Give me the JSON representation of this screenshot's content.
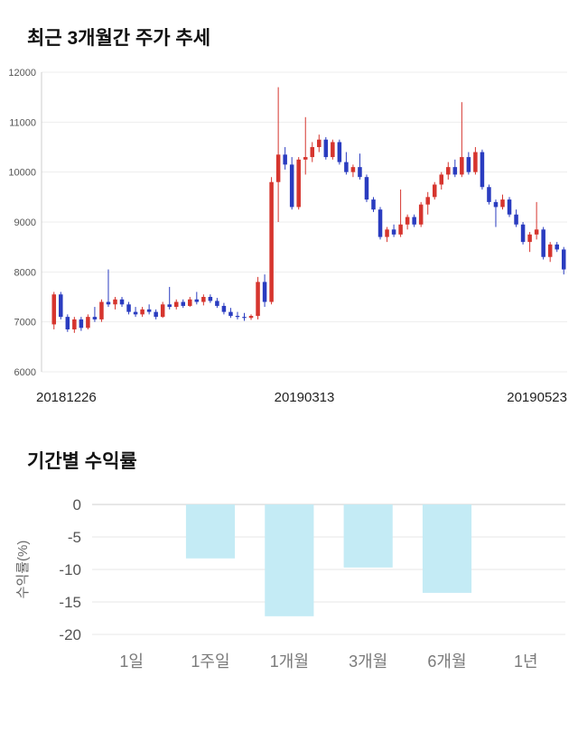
{
  "chart_data": [
    {
      "type": "candlestick",
      "title": "최근 3개월간 주가 추세",
      "ylim": [
        6000,
        12000
      ],
      "yticks": [
        12000,
        11000,
        10000,
        9000,
        8000,
        7000,
        6000
      ],
      "xtick_labels": [
        "20181226",
        "20190313",
        "20190523"
      ],
      "up_color": "#d6352e",
      "down_color": "#2a3cc0",
      "grid": true,
      "candles": [
        [
          6950,
          7600,
          6850,
          7550
        ],
        [
          7550,
          7600,
          7050,
          7100
        ],
        [
          7100,
          7150,
          6800,
          6850
        ],
        [
          6850,
          7100,
          6780,
          7050
        ],
        [
          7050,
          7100,
          6820,
          6880
        ],
        [
          6880,
          7150,
          6850,
          7100
        ],
        [
          7100,
          7300,
          7000,
          7050
        ],
        [
          7050,
          7450,
          7000,
          7400
        ],
        [
          7400,
          8050,
          7300,
          7350
        ],
        [
          7350,
          7500,
          7250,
          7450
        ],
        [
          7450,
          7500,
          7300,
          7350
        ],
        [
          7350,
          7400,
          7150,
          7200
        ],
        [
          7200,
          7300,
          7100,
          7150
        ],
        [
          7150,
          7300,
          7100,
          7250
        ],
        [
          7250,
          7350,
          7150,
          7200
        ],
        [
          7200,
          7250,
          7050,
          7100
        ],
        [
          7100,
          7400,
          7080,
          7350
        ],
        [
          7350,
          7700,
          7250,
          7300
        ],
        [
          7300,
          7450,
          7250,
          7400
        ],
        [
          7400,
          7450,
          7280,
          7320
        ],
        [
          7320,
          7500,
          7300,
          7450
        ],
        [
          7450,
          7600,
          7350,
          7400
        ],
        [
          7400,
          7550,
          7330,
          7500
        ],
        [
          7500,
          7550,
          7380,
          7420
        ],
        [
          7420,
          7480,
          7280,
          7320
        ],
        [
          7320,
          7380,
          7150,
          7200
        ],
        [
          7200,
          7280,
          7080,
          7120
        ],
        [
          7120,
          7200,
          7050,
          7100
        ],
        [
          7100,
          7180,
          7020,
          7080
        ],
        [
          7080,
          7150,
          7040,
          7120
        ],
        [
          7120,
          7900,
          7050,
          7800
        ],
        [
          7800,
          7950,
          7300,
          7400
        ],
        [
          7400,
          9900,
          7350,
          9800
        ],
        [
          9800,
          11700,
          9000,
          10350
        ],
        [
          10350,
          10500,
          10050,
          10150
        ],
        [
          10150,
          10300,
          9250,
          9300
        ],
        [
          9300,
          10300,
          9250,
          10250
        ],
        [
          10250,
          11100,
          9950,
          10300
        ],
        [
          10300,
          10600,
          10200,
          10500
        ],
        [
          10500,
          10750,
          10400,
          10650
        ],
        [
          10650,
          10700,
          10250,
          10300
        ],
        [
          10300,
          10650,
          10250,
          10600
        ],
        [
          10600,
          10650,
          10150,
          10200
        ],
        [
          10200,
          10400,
          9950,
          10000
        ],
        [
          10000,
          10150,
          9900,
          10100
        ],
        [
          10100,
          10370,
          9850,
          9900
        ],
        [
          9900,
          9950,
          9400,
          9450
        ],
        [
          9450,
          9500,
          9200,
          9250
        ],
        [
          9250,
          9300,
          8650,
          8700
        ],
        [
          8700,
          8900,
          8600,
          8850
        ],
        [
          8850,
          8950,
          8700,
          8750
        ],
        [
          8750,
          9650,
          8700,
          8950
        ],
        [
          8950,
          9150,
          8850,
          9100
        ],
        [
          9100,
          9150,
          8900,
          8950
        ],
        [
          8950,
          9400,
          8900,
          9350
        ],
        [
          9350,
          9600,
          9150,
          9500
        ],
        [
          9500,
          9800,
          9450,
          9750
        ],
        [
          9750,
          10000,
          9650,
          9950
        ],
        [
          9950,
          10200,
          9850,
          10100
        ],
        [
          10100,
          10250,
          9900,
          9950
        ],
        [
          9950,
          11400,
          9900,
          10300
        ],
        [
          10300,
          10400,
          9950,
          10000
        ],
        [
          10000,
          10500,
          9950,
          10400
        ],
        [
          10400,
          10450,
          9650,
          9700
        ],
        [
          9700,
          9750,
          9350,
          9400
        ],
        [
          9400,
          9450,
          8900,
          9300
        ],
        [
          9300,
          9550,
          9250,
          9450
        ],
        [
          9450,
          9500,
          9100,
          9150
        ],
        [
          9150,
          9250,
          8900,
          8950
        ],
        [
          8950,
          9000,
          8550,
          8600
        ],
        [
          8600,
          8800,
          8400,
          8750
        ],
        [
          8750,
          9400,
          8650,
          8850
        ],
        [
          8850,
          8900,
          8250,
          8300
        ],
        [
          8300,
          8600,
          8200,
          8550
        ],
        [
          8550,
          8600,
          8400,
          8450
        ],
        [
          8450,
          8500,
          7950,
          8050
        ]
      ]
    },
    {
      "type": "bar",
      "title": "기간별 수익률",
      "ylabel": "수익률(%)",
      "ylim": [
        -20,
        0
      ],
      "yticks": [
        0,
        -5,
        -10,
        -15,
        -20
      ],
      "categories": [
        "1일",
        "1주일",
        "1개월",
        "3개월",
        "6개월",
        "1년"
      ],
      "values": [
        0,
        -8.3,
        -17.2,
        -9.7,
        -13.6,
        0
      ],
      "bar_color": "#c4ebf5",
      "grid": true,
      "legend": "none"
    }
  ]
}
